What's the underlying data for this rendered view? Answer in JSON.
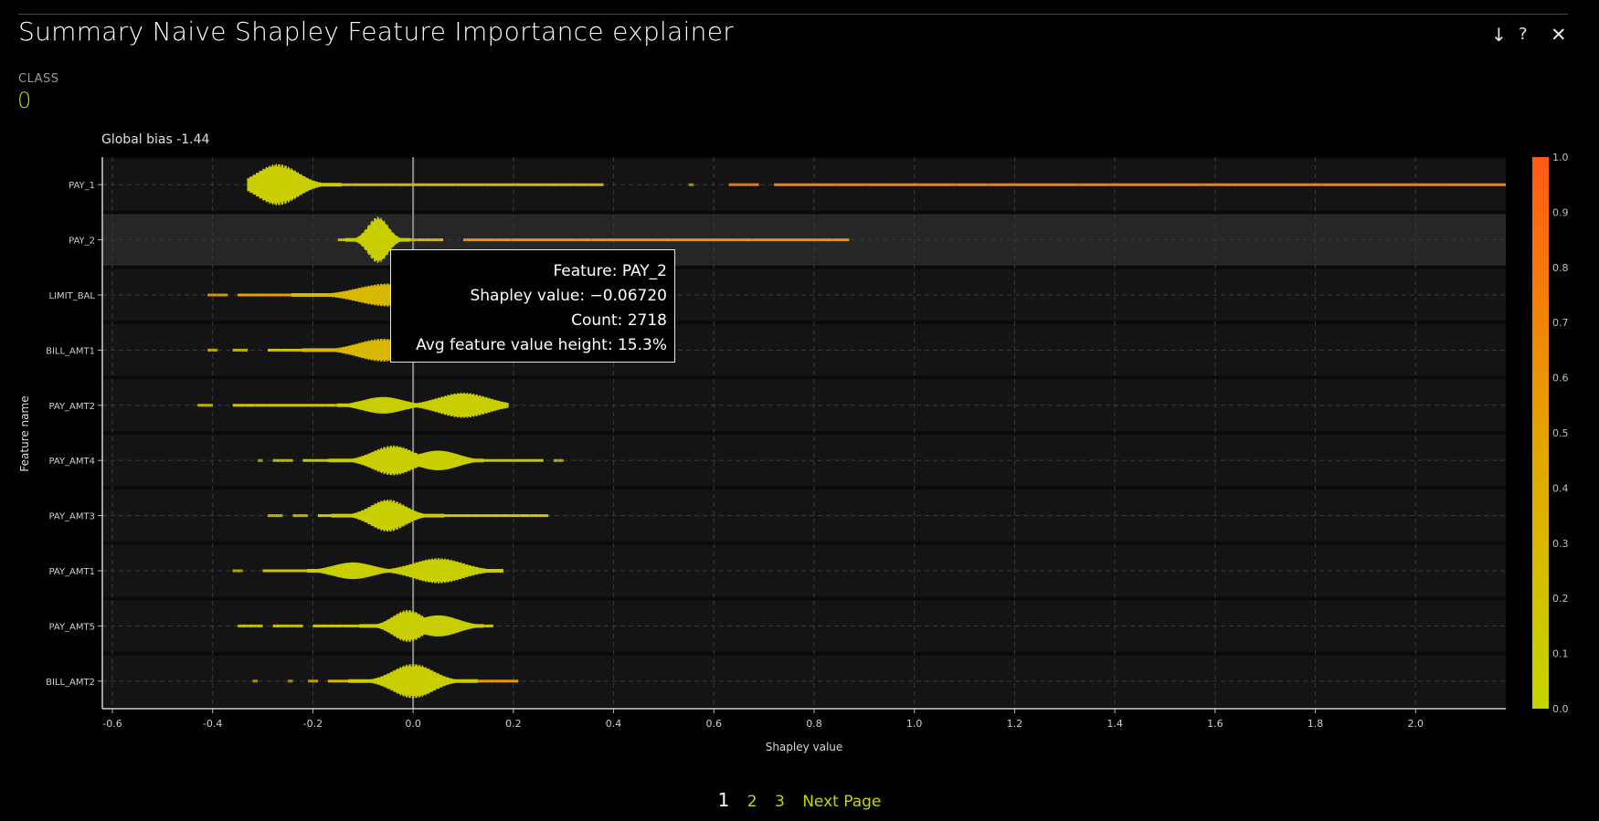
{
  "header": {
    "title": "Summary Naive Shapley Feature Importance explainer",
    "download_icon": "↓",
    "help_icon": "?",
    "close_icon": "✕"
  },
  "class_selector": {
    "label": "CLASS",
    "value": "0"
  },
  "pagination": {
    "pages": [
      "1",
      "2",
      "3"
    ],
    "current": "1",
    "next_label": "Next Page"
  },
  "tooltip": {
    "feature": "Feature: PAY_2",
    "shapley": "Shapley value: −0.06720",
    "count": "Count: 2718",
    "avg_height": "Avg feature value height: 15.3%"
  },
  "colors": {
    "low": "#c4d600",
    "high": "#ff5a14",
    "background": "#000000"
  },
  "chart_data": {
    "type": "scatter",
    "subtype": "beeswarm",
    "annotation": "Global bias -1.44",
    "xlabel": "Shapley value",
    "ylabel": "Feature name",
    "xlim": [
      -0.62,
      2.18
    ],
    "xticks": [
      "-0.6",
      "-0.4",
      "-0.2",
      "0.0",
      "0.2",
      "0.4",
      "0.6",
      "0.8",
      "1.0",
      "1.2",
      "1.4",
      "1.6",
      "1.8",
      "2.0"
    ],
    "grid": true,
    "highlighted_feature": "PAY_2",
    "colorbar": {
      "label": "",
      "range": [
        0.0,
        1.0
      ],
      "ticks": [
        "0.0",
        "0.1",
        "0.2",
        "0.3",
        "0.4",
        "0.5",
        "0.6",
        "0.7",
        "0.8",
        "0.9",
        "1.0"
      ]
    },
    "features": [
      {
        "name": "PAY_1",
        "min": -0.33,
        "max": 2.18,
        "peak": -0.27,
        "spread": 0.04,
        "height": 0.9,
        "high_start": 0.6,
        "high_color": 0.75,
        "segments": [
          [
            -0.33,
            0.38
          ],
          [
            0.55,
            0.56
          ],
          [
            0.63,
            0.69
          ],
          [
            0.72,
            2.18
          ]
        ]
      },
      {
        "name": "PAY_2",
        "min": -0.15,
        "max": 0.87,
        "peak": -0.07,
        "spread": 0.02,
        "height": 1.0,
        "high_start": 0.1,
        "high_color": 0.6,
        "segments": [
          [
            -0.15,
            0.06
          ],
          [
            0.1,
            0.87
          ]
        ]
      },
      {
        "name": "LIMIT_BAL",
        "min": -0.41,
        "max": 0.02,
        "peak": -0.05,
        "spread": 0.06,
        "height": 0.5,
        "high_start": -0.41,
        "high_color": 0.5,
        "segments": [
          [
            -0.41,
            -0.37
          ],
          [
            -0.35,
            0.02
          ]
        ]
      },
      {
        "name": "BILL_AMT1",
        "min": -0.41,
        "max": 0.02,
        "peak": -0.06,
        "spread": 0.05,
        "height": 0.5,
        "high_start": 0.5,
        "high_color": 0.3,
        "segments": [
          [
            -0.41,
            -0.39
          ],
          [
            -0.36,
            -0.33
          ],
          [
            -0.29,
            0.02
          ]
        ]
      },
      {
        "name": "PAY_AMT2",
        "min": -0.43,
        "max": 0.19,
        "peak": 0.1,
        "spread": 0.05,
        "height": 0.55,
        "high_start": 0.5,
        "high_color": 0.15,
        "segments": [
          [
            -0.43,
            -0.4
          ],
          [
            -0.36,
            0.19
          ]
        ]
      },
      {
        "name": "PAY_AMT4",
        "min": -0.31,
        "max": 0.3,
        "peak": -0.04,
        "spread": 0.04,
        "height": 0.65,
        "high_start": 0.5,
        "high_color": 0.15,
        "segments": [
          [
            -0.31,
            -0.3
          ],
          [
            -0.28,
            -0.24
          ],
          [
            -0.22,
            0.26
          ],
          [
            0.28,
            0.3
          ]
        ]
      },
      {
        "name": "PAY_AMT3",
        "min": -0.29,
        "max": 0.27,
        "peak": -0.05,
        "spread": 0.035,
        "height": 0.7,
        "high_start": 0.5,
        "high_color": 0.15,
        "segments": [
          [
            -0.29,
            -0.26
          ],
          [
            -0.24,
            -0.21
          ],
          [
            -0.19,
            0.27
          ]
        ]
      },
      {
        "name": "PAY_AMT1",
        "min": -0.36,
        "max": 0.18,
        "peak": 0.05,
        "spread": 0.05,
        "height": 0.55,
        "high_start": 0.5,
        "high_color": 0.15,
        "segments": [
          [
            -0.36,
            -0.34
          ],
          [
            -0.3,
            0.18
          ]
        ]
      },
      {
        "name": "PAY_AMT5",
        "min": -0.35,
        "max": 0.16,
        "peak": -0.01,
        "spread": 0.03,
        "height": 0.7,
        "high_start": 0.5,
        "high_color": 0.15,
        "segments": [
          [
            -0.35,
            -0.3
          ],
          [
            -0.28,
            -0.22
          ],
          [
            -0.2,
            0.16
          ]
        ]
      },
      {
        "name": "BILL_AMT2",
        "min": -0.32,
        "max": 0.21,
        "peak": 0.0,
        "spread": 0.04,
        "height": 0.75,
        "high_start": 0.1,
        "high_color": 0.55,
        "segments": [
          [
            -0.32,
            -0.31
          ],
          [
            -0.25,
            -0.24
          ],
          [
            -0.21,
            -0.19
          ],
          [
            -0.17,
            0.21
          ]
        ]
      }
    ]
  }
}
